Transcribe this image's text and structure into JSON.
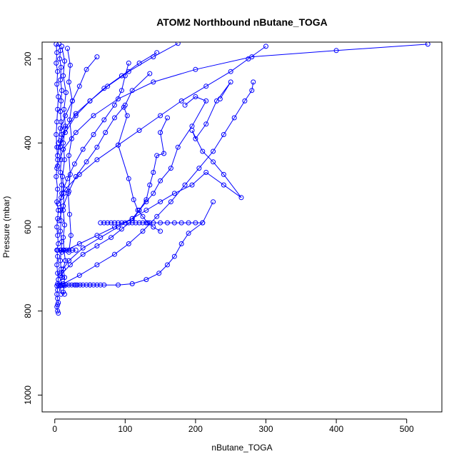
{
  "chart_data": {
    "type": "line",
    "title": "ATOM2 Northbound nButane_TOGA",
    "xlabel": "nButane_TOGA",
    "ylabel": "Pressure (mbar)",
    "xlim": [
      -18,
      550
    ],
    "ylim": [
      1040,
      160
    ],
    "y_inverted": true,
    "x_ticks": [
      0,
      100,
      200,
      300,
      400,
      500
    ],
    "y_ticks": [
      200,
      400,
      600,
      800,
      1000
    ],
    "grid": false,
    "legend": "none",
    "color": "#0000ff",
    "marker": "open-circle",
    "series": [
      {
        "x": [
          2,
          3,
          2,
          4,
          3,
          5,
          4,
          3,
          2,
          3,
          4,
          3,
          2,
          4,
          3,
          5,
          4,
          3,
          4,
          5,
          3,
          4,
          3,
          4,
          5,
          4,
          3,
          4,
          3,
          4,
          5,
          4,
          3,
          4,
          5
        ],
        "y": [
          165,
          185,
          210,
          230,
          260,
          290,
          320,
          350,
          380,
          410,
          440,
          460,
          480,
          510,
          540,
          560,
          580,
          600,
          620,
          640,
          655,
          670,
          690,
          710,
          725,
          735,
          740,
          750,
          760,
          770,
          780,
          785,
          790,
          800,
          805
        ]
      },
      {
        "x": [
          6,
          8,
          7,
          9,
          8,
          10,
          9,
          8,
          9,
          10,
          8,
          9,
          8,
          10,
          9,
          8,
          9,
          8,
          10,
          9,
          8,
          9,
          10,
          8,
          9
        ],
        "y": [
          165,
          180,
          200,
          220,
          250,
          275,
          300,
          325,
          350,
          380,
          410,
          440,
          470,
          500,
          530,
          560,
          585,
          610,
          635,
          655,
          680,
          700,
          720,
          740,
          760
        ]
      },
      {
        "x": [
          10,
          14,
          12,
          16,
          13,
          15,
          12,
          14,
          11,
          13,
          12,
          14,
          12,
          13,
          15,
          12,
          14,
          13,
          12,
          14
        ],
        "y": [
          170,
          205,
          240,
          280,
          320,
          360,
          400,
          440,
          480,
          520,
          560,
          595,
          625,
          655,
          680,
          700,
          720,
          740,
          755,
          760
        ]
      },
      {
        "x": [
          18,
          22,
          20,
          25,
          21,
          24,
          20,
          22,
          19,
          21,
          23,
          20
        ],
        "y": [
          175,
          215,
          255,
          300,
          345,
          390,
          430,
          475,
          520,
          570,
          620,
          660
        ]
      },
      {
        "x": [
          60,
          45,
          35,
          25,
          15,
          8,
          5
        ],
        "y": [
          195,
          225,
          265,
          300,
          335,
          365,
          400
        ]
      },
      {
        "x": [
          145,
          120,
          95,
          70,
          50,
          30,
          15,
          8,
          4
        ],
        "y": [
          185,
          210,
          240,
          270,
          300,
          330,
          365,
          395,
          430
        ]
      },
      {
        "x": [
          175,
          140,
          105,
          75,
          50,
          30,
          15,
          5
        ],
        "y": [
          163,
          195,
          230,
          265,
          300,
          335,
          375,
          410
        ]
      },
      {
        "x": [
          300,
          275,
          250,
          215,
          180,
          150,
          120,
          90,
          60,
          35,
          15,
          5
        ],
        "y": [
          170,
          200,
          230,
          265,
          300,
          335,
          370,
          405,
          440,
          475,
          510,
          545
        ]
      },
      {
        "x": [
          530,
          400,
          280,
          200,
          140,
          90,
          55,
          30,
          12,
          4
        ],
        "y": [
          165,
          180,
          195,
          225,
          255,
          295,
          335,
          375,
          415,
          455
        ]
      },
      {
        "x": [
          105,
          100,
          95,
          85,
          70,
          55,
          40,
          28,
          18,
          10
        ],
        "y": [
          210,
          240,
          275,
          310,
          345,
          380,
          415,
          450,
          485,
          520
        ]
      },
      {
        "x": [
          135,
          110,
          100,
          85,
          72,
          60,
          45,
          30,
          20,
          12,
          6
        ],
        "y": [
          235,
          275,
          310,
          340,
          375,
          410,
          445,
          480,
          515,
          550,
          585
        ]
      },
      {
        "x": [
          98,
          103,
          90,
          105,
          112,
          118,
          125,
          132,
          140,
          150
        ],
        "y": [
          315,
          335,
          405,
          485,
          535,
          560,
          575,
          590,
          600,
          610
        ]
      },
      {
        "x": [
          160,
          150,
          155,
          145,
          140,
          135,
          130,
          120,
          110,
          95,
          80,
          60,
          40,
          22,
          8
        ],
        "y": [
          340,
          375,
          425,
          430,
          470,
          500,
          535,
          560,
          585,
          605,
          625,
          645,
          665,
          690,
          715
        ]
      },
      {
        "x": [
          185,
          200,
          215,
          195,
          175,
          165,
          150,
          140,
          130,
          120,
          110,
          90,
          65,
          40,
          20,
          8
        ],
        "y": [
          310,
          290,
          300,
          360,
          410,
          460,
          490,
          520,
          540,
          560,
          580,
          600,
          625,
          650,
          680,
          710
        ]
      },
      {
        "x": [
          235,
          250,
          230,
          215,
          200,
          195,
          210,
          225,
          240,
          265,
          240,
          215,
          195,
          170,
          150,
          130,
          110,
          85,
          60,
          35,
          10
        ],
        "y": [
          295,
          255,
          300,
          355,
          390,
          370,
          420,
          445,
          475,
          530,
          500,
          470,
          500,
          520,
          540,
          560,
          580,
          600,
          620,
          640,
          660
        ]
      },
      {
        "x": [
          282,
          280,
          270,
          255,
          240,
          225,
          205,
          185,
          165,
          145,
          125,
          105,
          85,
          60,
          35,
          12
        ],
        "y": [
          255,
          275,
          300,
          340,
          380,
          420,
          460,
          500,
          540,
          575,
          610,
          640,
          665,
          690,
          715,
          735
        ]
      },
      {
        "x": [
          225,
          210,
          190,
          180,
          170,
          160,
          148,
          130,
          110,
          90,
          70,
          50,
          30,
          10
        ],
        "y": [
          540,
          590,
          615,
          640,
          670,
          690,
          710,
          725,
          735,
          738,
          738,
          738,
          738,
          738
        ]
      },
      {
        "x": [
          65,
          70,
          75,
          80,
          85,
          90,
          95,
          100,
          105,
          110,
          115,
          120,
          125,
          130,
          135,
          140,
          150,
          160,
          170,
          180,
          190,
          200,
          210
        ],
        "y": [
          590,
          590,
          590,
          590,
          590,
          590,
          590,
          590,
          590,
          590,
          590,
          590,
          590,
          590,
          590,
          590,
          590,
          590,
          590,
          590,
          590,
          590,
          590
        ]
      },
      {
        "x": [
          5,
          8,
          12,
          16,
          20,
          24,
          28,
          32,
          36,
          40,
          45,
          50,
          55,
          60,
          65
        ],
        "y": [
          738,
          738,
          738,
          738,
          738,
          738,
          738,
          738,
          738,
          738,
          738,
          738,
          738,
          738,
          738
        ]
      },
      {
        "x": [
          4,
          8,
          12,
          16,
          20,
          25,
          30
        ],
        "y": [
          655,
          655,
          655,
          655,
          655,
          655,
          655
        ]
      }
    ]
  }
}
